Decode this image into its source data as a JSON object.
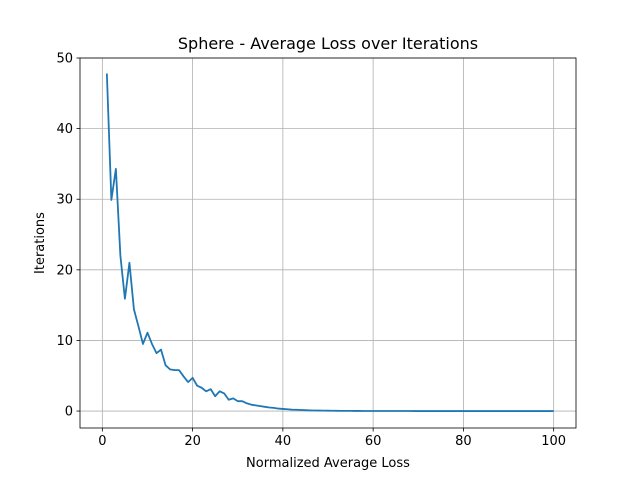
{
  "chart_data": {
    "type": "line",
    "title": "Sphere - Average Loss over Iterations",
    "xlabel": "Normalized Average Loss",
    "ylabel": "Iterations",
    "xlim": [
      -4.95,
      104.95
    ],
    "ylim": [
      -2.4,
      50
    ],
    "xticks": [
      0,
      20,
      40,
      60,
      80,
      100
    ],
    "yticks": [
      0,
      10,
      20,
      30,
      40,
      50
    ],
    "xtick_labels": [
      "0",
      "20",
      "40",
      "60",
      "80",
      "100"
    ],
    "ytick_labels": [
      "0",
      "10",
      "20",
      "30",
      "40",
      "50"
    ],
    "grid": true,
    "series": [
      {
        "color": "#1f77b4",
        "x": [
          1,
          2,
          3,
          4,
          5,
          6,
          7,
          8,
          9,
          10,
          11,
          12,
          13,
          14,
          15,
          16,
          17,
          18,
          19,
          20,
          21,
          22,
          23,
          24,
          25,
          26,
          27,
          28,
          29,
          30,
          31,
          32,
          33,
          34,
          35,
          36,
          37,
          38,
          39,
          40,
          41,
          42,
          43,
          44,
          45,
          46,
          47,
          48,
          49,
          50,
          51,
          52,
          53,
          54,
          55,
          56,
          57,
          58,
          59,
          60,
          61,
          62,
          63,
          64,
          65,
          66,
          67,
          68,
          69,
          70,
          71,
          72,
          73,
          74,
          75,
          76,
          77,
          78,
          79,
          80,
          81,
          82,
          83,
          84,
          85,
          86,
          87,
          88,
          89,
          90,
          91,
          92,
          93,
          94,
          95,
          96,
          97,
          98,
          99,
          100
        ],
        "y": [
          47.8,
          29.9,
          34.3,
          22.0,
          15.9,
          21.0,
          14.4,
          12.0,
          9.5,
          11.1,
          9.5,
          8.2,
          8.7,
          6.5,
          5.9,
          5.8,
          5.8,
          4.9,
          4.1,
          4.7,
          3.6,
          3.3,
          2.8,
          3.1,
          2.1,
          2.8,
          2.5,
          1.6,
          1.8,
          1.4,
          1.4,
          1.1,
          0.9,
          0.8,
          0.7,
          0.6,
          0.5,
          0.45,
          0.35,
          0.3,
          0.25,
          0.2,
          0.18,
          0.15,
          0.12,
          0.1,
          0.08,
          0.07,
          0.06,
          0.05,
          0.04,
          0.035,
          0.03,
          0.025,
          0.02,
          0.018,
          0.015,
          0.012,
          0.01,
          0.009,
          0.008,
          0.007,
          0.006,
          0.005,
          0.004,
          0.004,
          0.003,
          0.003,
          0.002,
          0.002,
          0.002,
          0.001,
          0.001,
          0.001,
          0.001,
          0.001,
          0,
          0,
          0,
          0,
          0,
          0,
          0,
          0,
          0,
          0,
          0,
          0,
          0,
          0,
          0,
          0,
          0,
          0,
          0,
          0,
          0,
          0,
          0,
          0
        ]
      }
    ]
  }
}
